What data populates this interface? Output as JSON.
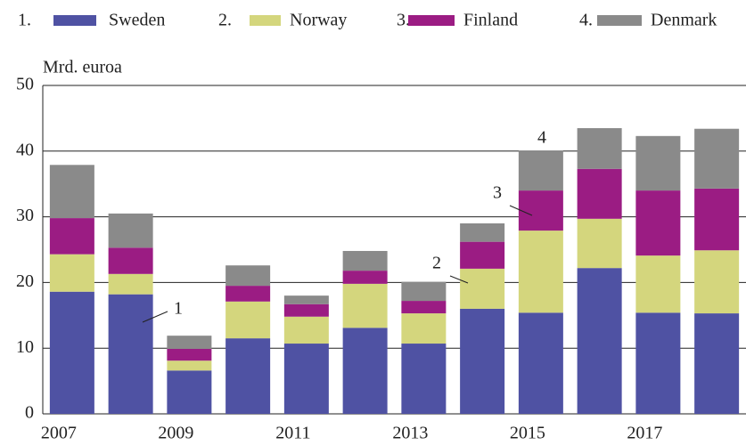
{
  "chart_data": {
    "type": "stacked-bar",
    "y_label": "Mrd. euroa",
    "categories": [
      "2007",
      null,
      "2009",
      null,
      "2011",
      null,
      "2013",
      null,
      "2015",
      null,
      "2017",
      null
    ],
    "series": [
      {
        "name": "Sweden",
        "legend_number": "1.",
        "color": "#4f52a3",
        "values": [
          18.6,
          18.2,
          6.6,
          11.5,
          10.7,
          13.1,
          10.7,
          16.0,
          15.4,
          22.2,
          15.4,
          15.3
        ]
      },
      {
        "name": "Norway",
        "legend_number": "2.",
        "color": "#d4d67d",
        "values": [
          5.7,
          3.1,
          1.5,
          5.6,
          4.1,
          6.7,
          4.6,
          6.1,
          12.5,
          7.5,
          8.7,
          9.6
        ]
      },
      {
        "name": "Finland",
        "legend_number": "3.",
        "color": "#9b1c83",
        "values": [
          5.5,
          4.0,
          1.8,
          2.4,
          1.9,
          2.0,
          1.9,
          4.1,
          6.1,
          7.6,
          9.9,
          9.4
        ]
      },
      {
        "name": "Denmark",
        "legend_number": "4.",
        "color": "#8a8a8a",
        "values": [
          8.1,
          5.2,
          2.0,
          3.1,
          1.3,
          3.0,
          2.9,
          2.8,
          6.1,
          6.2,
          8.3,
          9.1
        ]
      }
    ],
    "annotations": [
      "1",
      "2",
      "3",
      "4"
    ],
    "ylim": [
      0,
      50
    ],
    "yticks": [
      0,
      10,
      20,
      30,
      40,
      50
    ],
    "grid": true
  }
}
